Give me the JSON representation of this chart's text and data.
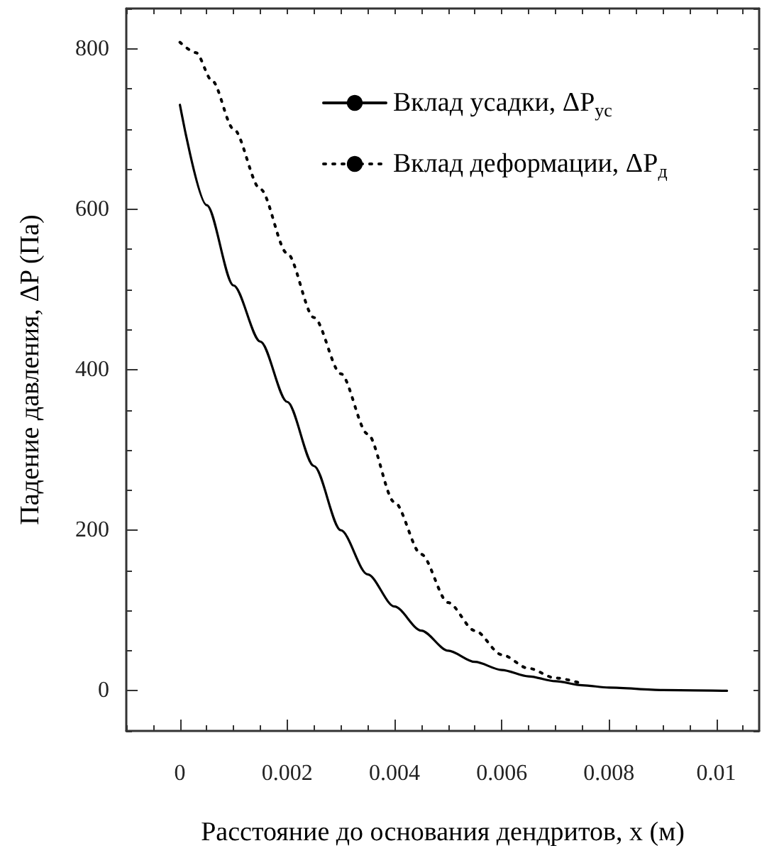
{
  "chart_data": {
    "type": "line",
    "xlabel": "Расстояние до основания дендритов, x (м)",
    "ylabel": "Падение давления, ΔP (Па)",
    "xlim": [
      -0.001,
      0.0108
    ],
    "ylim": [
      -50,
      850
    ],
    "xticks": [
      0,
      0.002,
      0.004,
      0.006,
      0.008,
      0.01
    ],
    "yticks": [
      0,
      200,
      400,
      600,
      800
    ],
    "grid": false,
    "legend": "top right",
    "marker": "none",
    "series": [
      {
        "name": "Вклад усадки, ΔP$_{ус}$",
        "color": "#000000",
        "line_style": "solid",
        "x": [
          0,
          0.0005,
          0.001,
          0.0015,
          0.002,
          0.0025,
          0.003,
          0.0035,
          0.004,
          0.0045,
          0.005,
          0.0055,
          0.006,
          0.0065,
          0.007,
          0.0075,
          0.008,
          0.009,
          0.0102
        ],
        "values": [
          730,
          605,
          505,
          435,
          360,
          280,
          200,
          145,
          105,
          75,
          50,
          36,
          26,
          18,
          12,
          7,
          4,
          1,
          0
        ]
      },
      {
        "name": "Вклад деформации, ΔP$_{д}$",
        "color": "#000000",
        "line_style": "dotted",
        "x": [
          0,
          0.0003,
          0.0006,
          0.001,
          0.0015,
          0.002,
          0.0025,
          0.003,
          0.0035,
          0.004,
          0.0045,
          0.005,
          0.0055,
          0.006,
          0.0065,
          0.007,
          0.0075
        ],
        "values": [
          808,
          795,
          760,
          700,
          625,
          545,
          465,
          395,
          320,
          235,
          170,
          110,
          75,
          45,
          28,
          16,
          9
        ]
      }
    ]
  }
}
